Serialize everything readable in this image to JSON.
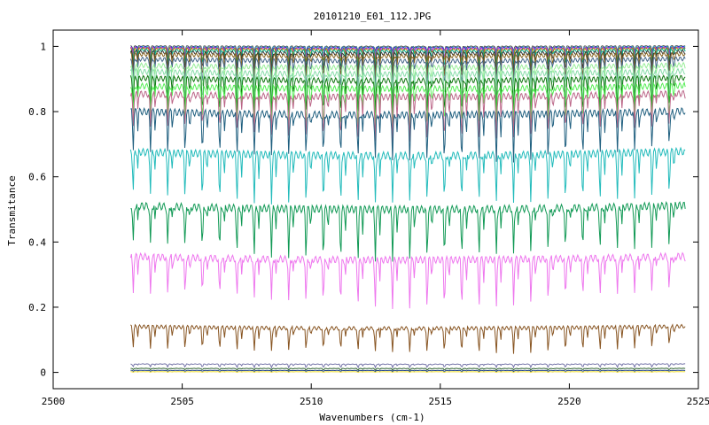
{
  "chart_data": {
    "type": "line",
    "title": "20101210_E01_112.JPG",
    "xlabel": "Wavenumbers (cm-1)",
    "ylabel": "Transmitance",
    "xlim": [
      2500,
      2525
    ],
    "ylim": [
      -0.05,
      1.05
    ],
    "xticks": [
      2500,
      2505,
      2510,
      2515,
      2520,
      2525
    ],
    "yticks": [
      0,
      0.2,
      0.4,
      0.6,
      0.8,
      1
    ],
    "ytick_labels": [
      "0",
      "0.2",
      "0.4",
      "0.6",
      "0.8",
      "1"
    ],
    "grid": false,
    "legend": "none",
    "line_spacing_cm1": 0.67,
    "x_range": [
      2503.0,
      2524.5
    ],
    "series": [
      {
        "color": "#555555",
        "baseline": 1.0,
        "depth": 0.015
      },
      {
        "color": "#33aacc",
        "baseline": 0.997,
        "depth": 0.02
      },
      {
        "color": "#3333cc",
        "baseline": 0.995,
        "depth": 0.03
      },
      {
        "color": "#cc33cc",
        "baseline": 0.993,
        "depth": 0.03
      },
      {
        "color": "#aa8800",
        "baseline": 0.99,
        "depth": 0.04
      },
      {
        "color": "#00aa88",
        "baseline": 0.985,
        "depth": 0.05
      },
      {
        "color": "#333333",
        "baseline": 0.978,
        "depth": 0.06
      },
      {
        "color": "#886622",
        "baseline": 0.97,
        "depth": 0.07
      },
      {
        "color": "#446688",
        "baseline": 0.955,
        "depth": 0.08
      },
      {
        "color": "#99ee99",
        "baseline": 0.935,
        "depth": 0.09
      },
      {
        "color": "#88ddaa",
        "baseline": 0.915,
        "depth": 0.1
      },
      {
        "color": "#117711",
        "baseline": 0.895,
        "depth": 0.1
      },
      {
        "color": "#55ee55",
        "baseline": 0.87,
        "depth": 0.11
      },
      {
        "color": "#bb6688",
        "baseline": 0.845,
        "depth": 0.12
      },
      {
        "color": "#1f5f7f",
        "baseline": 0.79,
        "depth": 0.13
      },
      {
        "color": "#22bbbb",
        "baseline": 0.665,
        "depth": 0.14
      },
      {
        "color": "#119955",
        "baseline": 0.5,
        "depth": 0.14
      },
      {
        "color": "#ee77ee",
        "baseline": 0.345,
        "depth": 0.13
      },
      {
        "color": "#885522",
        "baseline": 0.135,
        "depth": 0.07
      },
      {
        "color": "#7777aa",
        "baseline": 0.025,
        "depth": 0.01
      },
      {
        "color": "#336633",
        "baseline": 0.012,
        "depth": 0.005
      },
      {
        "color": "#224488",
        "baseline": 0.006,
        "depth": 0.003
      },
      {
        "color": "#eedd33",
        "baseline": 0.002,
        "depth": 0.002
      }
    ]
  }
}
